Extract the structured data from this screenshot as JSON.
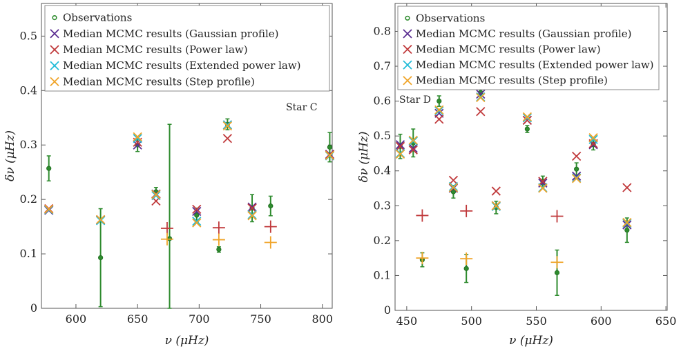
{
  "chart_data": [
    {
      "type": "scatter",
      "star_label": "Star C",
      "xlabel": "ν (μHz)",
      "ylabel": "δν (μHz)",
      "xlim": [
        572,
        808
      ],
      "ylim": [
        0,
        0.56
      ],
      "xticks": [
        600,
        650,
        700,
        750,
        800
      ],
      "yticks": [
        0,
        0.1,
        0.2,
        0.3,
        0.4,
        0.5
      ],
      "xtick_labels": [
        "600",
        "650",
        "700",
        "750",
        "800"
      ],
      "ytick_labels": [
        "0",
        "0.1",
        "0.2",
        "0.3",
        "0.4",
        "0.5"
      ],
      "legend_position": "top",
      "observations": {
        "name": "Observations",
        "x": [
          578,
          620,
          650,
          665,
          676,
          698,
          716,
          723,
          743,
          758,
          806
        ],
        "y": [
          0.257,
          0.093,
          0.3,
          0.214,
          0.128,
          0.171,
          0.108,
          0.338,
          0.184,
          0.188,
          0.296
        ],
        "yerr": [
          0.023,
          0.09,
          0.012,
          0.008,
          0.21,
          0.013,
          0.005,
          0.01,
          0.025,
          0.018,
          0.027
        ]
      },
      "series": [
        {
          "name": "Median MCMC results (Gaussian profile)",
          "marker": "x",
          "x": [
            578,
            620,
            650,
            665,
            698,
            723,
            743,
            806
          ],
          "y": [
            0.18,
            0.162,
            0.3,
            0.21,
            0.178,
            0.337,
            0.186,
            0.283
          ]
        },
        {
          "name": "Median MCMC results (Power law)",
          "marker": "x",
          "x": [
            578,
            620,
            650,
            665,
            698,
            723,
            743,
            806
          ],
          "y": [
            0.183,
            0.163,
            0.305,
            0.197,
            0.182,
            0.312,
            0.184,
            0.282
          ]
        },
        {
          "name": "Median MCMC results (Extended power law)",
          "marker": "x",
          "x": [
            578,
            620,
            650,
            665,
            698,
            723,
            743,
            806
          ],
          "y": [
            0.181,
            0.161,
            0.312,
            0.207,
            0.16,
            0.337,
            0.172,
            0.28
          ]
        },
        {
          "name": "Median MCMC results (Step profile)",
          "marker": "x",
          "x": [
            578,
            620,
            650,
            665,
            698,
            723,
            743,
            806
          ],
          "y": [
            0.182,
            0.163,
            0.315,
            0.209,
            0.157,
            0.335,
            0.17,
            0.281
          ]
        }
      ],
      "plus_points": [
        {
          "series": "Median MCMC results (Power law)",
          "x": 674,
          "y": 0.147
        },
        {
          "series": "Median MCMC results (Step profile)",
          "x": 674,
          "y": 0.127
        },
        {
          "series": "Median MCMC results (Power law)",
          "x": 716,
          "y": 0.148
        },
        {
          "series": "Median MCMC results (Step profile)",
          "x": 716,
          "y": 0.126
        },
        {
          "series": "Median MCMC results (Power law)",
          "x": 758,
          "y": 0.15
        },
        {
          "series": "Median MCMC results (Step profile)",
          "x": 758,
          "y": 0.121
        }
      ]
    },
    {
      "type": "scatter",
      "star_label": "Star D",
      "xlabel": "ν (μHz)",
      "ylabel": "δν (μHz)",
      "xlim": [
        441,
        651
      ],
      "ylim": [
        0,
        0.88
      ],
      "xticks": [
        450,
        500,
        550,
        600,
        650
      ],
      "yticks": [
        0,
        0.1,
        0.2,
        0.3,
        0.4,
        0.5,
        0.6,
        0.7,
        0.8
      ],
      "xtick_labels": [
        "450",
        "500",
        "550",
        "600",
        "650"
      ],
      "ytick_labels": [
        "0",
        "0.1",
        "0.2",
        "0.3",
        "0.4",
        "0.5",
        "0.6",
        "0.7",
        "0.8"
      ],
      "legend_position": "top",
      "observations": {
        "name": "Observations",
        "x": [
          445,
          455,
          462,
          475,
          486,
          496,
          507,
          519,
          543,
          555,
          566,
          581,
          594,
          620
        ],
        "y": [
          0.47,
          0.48,
          0.145,
          0.6,
          0.34,
          0.12,
          0.625,
          0.295,
          0.52,
          0.37,
          0.108,
          0.405,
          0.475,
          0.23
        ],
        "yerr": [
          0.035,
          0.04,
          0.02,
          0.015,
          0.018,
          0.04,
          0.012,
          0.018,
          0.01,
          0.015,
          0.065,
          0.018,
          0.015,
          0.035
        ]
      },
      "series": [
        {
          "name": "Median MCMC results (Gaussian profile)",
          "marker": "x",
          "x": [
            445,
            455,
            475,
            486,
            507,
            519,
            543,
            555,
            581,
            594,
            620
          ],
          "y": [
            0.475,
            0.465,
            0.565,
            0.35,
            0.62,
            0.3,
            0.545,
            0.365,
            0.385,
            0.475,
            0.245
          ]
        },
        {
          "name": "Median MCMC results (Power law)",
          "marker": "x",
          "x": [
            445,
            455,
            475,
            486,
            507,
            519,
            543,
            555,
            581,
            594,
            620
          ],
          "y": [
            0.47,
            0.46,
            0.548,
            0.373,
            0.57,
            0.342,
            0.545,
            0.37,
            0.442,
            0.478,
            0.352
          ]
        },
        {
          "name": "Median MCMC results (Extended power law)",
          "marker": "x",
          "x": [
            445,
            455,
            475,
            486,
            507,
            519,
            543,
            555,
            581,
            594,
            620
          ],
          "y": [
            0.45,
            0.485,
            0.572,
            0.355,
            0.612,
            0.298,
            0.552,
            0.352,
            0.38,
            0.49,
            0.25
          ]
        },
        {
          "name": "Median MCMC results (Step profile)",
          "marker": "x",
          "x": [
            445,
            455,
            475,
            486,
            507,
            519,
            543,
            555,
            581,
            594,
            620
          ],
          "y": [
            0.448,
            0.488,
            0.575,
            0.352,
            0.61,
            0.3,
            0.555,
            0.35,
            0.378,
            0.495,
            0.252
          ]
        }
      ],
      "plus_points": [
        {
          "series": "Median MCMC results (Power law)",
          "x": 462,
          "y": 0.272
        },
        {
          "series": "Median MCMC results (Step profile)",
          "x": 462,
          "y": 0.15
        },
        {
          "series": "Median MCMC results (Power law)",
          "x": 496,
          "y": 0.285
        },
        {
          "series": "Median MCMC results (Step profile)",
          "x": 496,
          "y": 0.148
        },
        {
          "series": "Median MCMC results (Power law)",
          "x": 566,
          "y": 0.27
        },
        {
          "series": "Median MCMC results (Step profile)",
          "x": 566,
          "y": 0.138
        }
      ]
    }
  ],
  "colors": {
    "Observations": "#2e8b2e",
    "Median MCMC results (Gaussian profile)": "#5a2d91",
    "Median MCMC results (Power law)": "#c0393b",
    "Median MCMC results (Extended power law)": "#22bcd8",
    "Median MCMC results (Step profile)": "#f0a428"
  }
}
